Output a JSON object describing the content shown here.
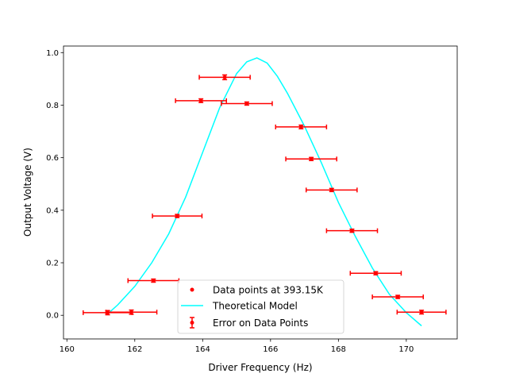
{
  "chart_data": {
    "type": "scatter",
    "xlabel": "Driver Frequency (Hz)",
    "ylabel": "Output Voltage (V)",
    "xlim": [
      159.9,
      171.5
    ],
    "ylim": [
      -0.09,
      1.025
    ],
    "x_ticks": [
      160,
      162,
      164,
      166,
      168,
      170
    ],
    "x_tick_labels": [
      "160",
      "162",
      "164",
      "166",
      "168",
      "170"
    ],
    "y_ticks": [
      0.0,
      0.2,
      0.4,
      0.6,
      0.8,
      1.0
    ],
    "y_tick_labels": [
      "0.0",
      "0.2",
      "0.4",
      "0.6",
      "0.8",
      "1.0"
    ],
    "grid": false,
    "legend_position": "lower-center",
    "colors": {
      "data": "#ff0000",
      "model": "#00ffff",
      "axes": "#000000"
    },
    "series": [
      {
        "name": "Data points at 393.15K",
        "kind": "points",
        "x": [
          161.2,
          161.9,
          162.55,
          163.25,
          163.95,
          164.65,
          165.3,
          166.9,
          167.2,
          167.8,
          168.4,
          169.1,
          169.75,
          170.45
        ],
        "y": [
          0.01,
          0.012,
          0.132,
          0.378,
          0.817,
          0.906,
          0.806,
          0.717,
          0.595,
          0.477,
          0.322,
          0.16,
          0.07,
          0.012
        ],
        "x_err": [
          0.72,
          0.75,
          0.75,
          0.73,
          0.75,
          0.75,
          0.75,
          0.75,
          0.75,
          0.75,
          0.75,
          0.75,
          0.75,
          0.72
        ],
        "y_err": [
          0.008,
          0.008,
          0.006,
          0.006,
          0.007,
          0.009,
          0.006,
          0.007,
          0.006,
          0.006,
          0.006,
          0.006,
          0.006,
          0.007
        ]
      },
      {
        "name": "Theoretical Model",
        "kind": "line",
        "x": [
          161.2,
          161.5,
          162.0,
          162.5,
          163.0,
          163.5,
          164.0,
          164.5,
          165.0,
          165.3,
          165.6,
          165.9,
          166.2,
          166.5,
          167.0,
          167.5,
          168.0,
          168.5,
          169.0,
          169.5,
          170.0,
          170.45
        ],
        "y": [
          0.005,
          0.04,
          0.11,
          0.2,
          0.31,
          0.45,
          0.62,
          0.79,
          0.92,
          0.965,
          0.98,
          0.96,
          0.91,
          0.845,
          0.72,
          0.58,
          0.43,
          0.3,
          0.18,
          0.08,
          0.01,
          -0.04
        ]
      },
      {
        "name": "Error on Data Points",
        "kind": "errorbars"
      }
    ]
  }
}
